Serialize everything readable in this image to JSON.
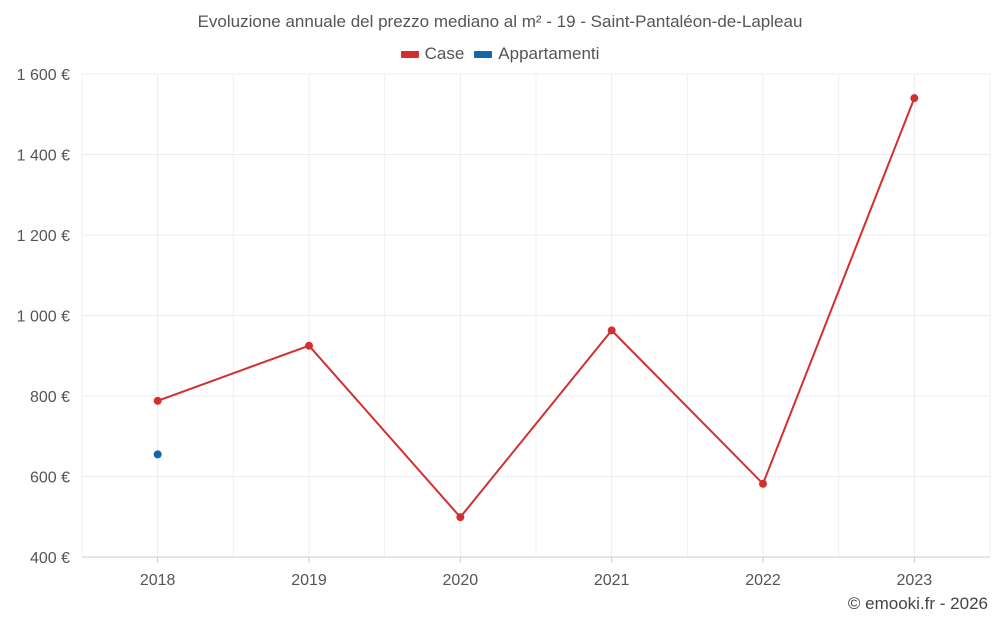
{
  "chart_data": {
    "type": "line",
    "title": "Evoluzione annuale del prezzo mediano al m² - 19 - Saint-Pantaléon-de-Lapleau",
    "categories": [
      "2018",
      "2019",
      "2020",
      "2021",
      "2022",
      "2023"
    ],
    "series": [
      {
        "name": "Case",
        "color": "#d32f2f",
        "values": [
          788,
          925,
          499,
          963,
          582,
          1540
        ]
      },
      {
        "name": "Appartamenti",
        "color": "#1565a8",
        "values": [
          655,
          null,
          null,
          null,
          null,
          null
        ]
      }
    ],
    "ylim": [
      400,
      1600
    ],
    "yticks": [
      400,
      600,
      800,
      1000,
      1200,
      1400,
      1600
    ],
    "ytick_labels": [
      "400 €",
      "600 €",
      "800 €",
      "1 000 €",
      "1 200 €",
      "1 400 €",
      "1 600 €"
    ],
    "grid": true,
    "legend_position": "top-center",
    "xlabel": "",
    "ylabel": ""
  },
  "legend": {
    "items": [
      {
        "label": "Case",
        "color": "#d32f2f"
      },
      {
        "label": "Appartamenti",
        "color": "#1565a8"
      }
    ]
  },
  "credit": "© emooki.fr - 2026"
}
